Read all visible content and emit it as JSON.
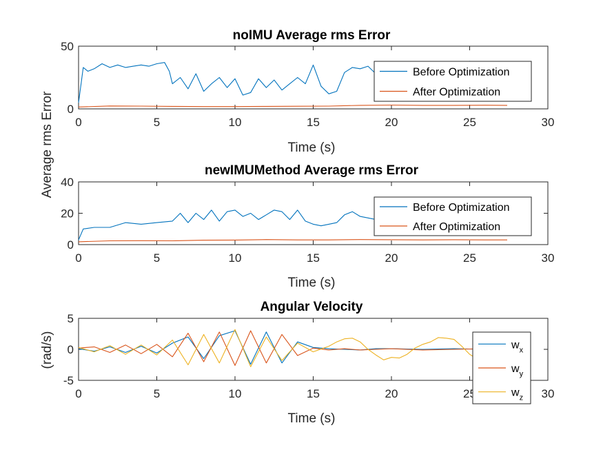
{
  "colors": {
    "series1": "#0072BD",
    "series2": "#D95319",
    "series3": "#EDB120",
    "axis": "#262626",
    "background": "#ffffff"
  },
  "chart_data": [
    {
      "type": "line",
      "title": "noIMU Average rms Error",
      "xlabel": "Time (s)",
      "ylabel": "Average rms Error",
      "xlim": [
        0,
        30
      ],
      "ylim": [
        0,
        50
      ],
      "xticks": [
        0,
        5,
        10,
        15,
        20,
        25,
        30
      ],
      "yticks": [
        0,
        50
      ],
      "legend_position": "top-right",
      "series": [
        {
          "name": "Before Optimization",
          "color": "#0072BD",
          "x": [
            0,
            0.3,
            0.6,
            1.0,
            1.5,
            2.0,
            2.5,
            3.0,
            3.5,
            4.0,
            4.5,
            5.0,
            5.5,
            5.8,
            6.0,
            6.5,
            7.0,
            7.5,
            8.0,
            8.5,
            9.0,
            9.5,
            10.0,
            10.5,
            11.0,
            11.5,
            12.0,
            12.5,
            13.0,
            13.5,
            14.0,
            14.5,
            15.0,
            15.5,
            16.0,
            16.5,
            17.0,
            17.5,
            18.0,
            18.5,
            19.0,
            19.5,
            20.0,
            21.0,
            22.0,
            23.0,
            24.0,
            25.0,
            26.0,
            27.0,
            27.4
          ],
          "y": [
            5,
            33,
            30,
            32,
            36,
            33,
            35,
            33,
            34,
            35,
            34,
            36,
            37,
            30,
            20,
            25,
            16,
            28,
            14,
            20,
            25,
            17,
            24,
            11,
            13,
            24,
            17,
            23,
            15,
            20,
            25,
            20,
            35,
            18,
            12,
            14,
            29,
            33,
            32,
            34,
            28,
            30,
            30,
            31,
            31,
            30,
            30,
            38,
            30,
            31,
            32
          ]
        },
        {
          "name": "After Optimization",
          "color": "#D95319",
          "x": [
            0,
            2,
            4,
            6,
            8,
            10,
            12,
            14,
            16,
            18,
            20,
            22,
            24,
            26,
            27.4
          ],
          "y": [
            1.5,
            2.3,
            2.2,
            2.0,
            1.8,
            1.8,
            2.0,
            2.1,
            2.2,
            2.8,
            3.0,
            2.8,
            2.8,
            2.9,
            2.8
          ]
        }
      ]
    },
    {
      "type": "line",
      "title": "newIMUMethod Average rms Error",
      "xlabel": "Time (s)",
      "ylabel": "Average rms Error",
      "xlim": [
        0,
        30
      ],
      "ylim": [
        0,
        40
      ],
      "xticks": [
        0,
        5,
        10,
        15,
        20,
        25,
        30
      ],
      "yticks": [
        0,
        20,
        40
      ],
      "legend_position": "top-right",
      "series": [
        {
          "name": "Before Optimization",
          "color": "#0072BD",
          "x": [
            0,
            0.3,
            1.0,
            2.0,
            3.0,
            4.0,
            5.0,
            6.0,
            6.5,
            7.0,
            7.5,
            8.0,
            8.5,
            9.0,
            9.5,
            10.0,
            10.5,
            11.0,
            11.5,
            12.0,
            12.5,
            13.0,
            13.5,
            14.0,
            14.5,
            15.0,
            15.5,
            16.0,
            16.5,
            17.0,
            17.5,
            18.0,
            18.5,
            19.0,
            19.5,
            20.0,
            21.0,
            22.0,
            23.0,
            24.0,
            25.0,
            26.0,
            27.0,
            27.4
          ],
          "y": [
            3,
            10,
            11,
            11,
            14,
            13,
            14,
            15,
            20,
            14,
            20,
            16,
            22,
            15,
            21,
            22,
            18,
            20,
            16,
            19,
            22,
            21,
            16,
            22,
            15,
            13,
            12,
            13,
            14,
            19,
            21,
            18,
            17,
            16,
            16,
            15,
            15,
            16,
            15,
            15,
            16,
            15,
            16,
            16
          ]
        },
        {
          "name": "After Optimization",
          "color": "#D95319",
          "x": [
            0,
            2,
            4,
            6,
            8,
            10,
            12,
            14,
            16,
            18,
            20,
            22,
            24,
            26,
            27.4
          ],
          "y": [
            1.8,
            2.4,
            2.5,
            2.4,
            2.8,
            2.9,
            3.2,
            3.0,
            3.0,
            3.2,
            3.1,
            3.0,
            3.1,
            3.0,
            3.0
          ]
        }
      ]
    },
    {
      "type": "line",
      "title": "Angular Velocity",
      "xlabel": "Time (s)",
      "ylabel": "(rad/s)",
      "xlim": [
        0,
        30
      ],
      "ylim": [
        -5,
        5
      ],
      "xticks": [
        0,
        5,
        10,
        15,
        20,
        25,
        30
      ],
      "yticks": [
        -5,
        0,
        5
      ],
      "legend_position": "bottom-right",
      "series": [
        {
          "name": "w",
          "subscript": "x",
          "color": "#0072BD",
          "x": [
            0,
            1,
            2,
            3,
            4,
            5,
            6,
            7,
            8,
            9,
            10,
            11,
            12,
            13,
            14,
            15,
            16,
            17,
            18,
            19,
            20,
            22,
            24,
            26,
            27.4
          ],
          "y": [
            0.1,
            -0.3,
            0.4,
            -0.5,
            0.5,
            -0.6,
            1.0,
            2.0,
            -1.5,
            2.2,
            3.0,
            -2.4,
            2.8,
            -2.2,
            1.2,
            0.3,
            0.1,
            0.0,
            -0.1,
            0.1,
            0.1,
            0.0,
            0.1,
            0.0,
            0.1
          ]
        },
        {
          "name": "w",
          "subscript": "y",
          "color": "#D95319",
          "x": [
            0,
            1,
            2,
            3,
            4,
            5,
            6,
            7,
            8,
            9,
            10,
            11,
            12,
            13,
            14,
            15,
            16,
            17,
            18,
            19,
            20,
            22,
            24,
            26,
            27.4
          ],
          "y": [
            0.2,
            0.4,
            -0.5,
            0.7,
            -0.7,
            0.8,
            -1.2,
            2.6,
            -2.0,
            2.8,
            -2.6,
            3.0,
            -2.2,
            2.4,
            -1.0,
            0.2,
            -0.1,
            0.1,
            -0.1,
            0.0,
            0.1,
            -0.1,
            0.0,
            0.1,
            0.0
          ]
        },
        {
          "name": "w",
          "subscript": "z",
          "color": "#EDB120",
          "x": [
            0,
            1,
            2,
            3,
            4,
            5,
            6,
            7,
            8,
            9,
            10,
            11,
            12,
            13,
            14,
            15,
            16,
            16.5,
            17,
            17.5,
            18,
            18.5,
            19,
            19.5,
            20,
            20.5,
            21,
            21.5,
            22,
            22.5,
            23,
            23.5,
            24,
            24.5,
            25,
            25.5,
            26,
            27.4
          ],
          "y": [
            0.3,
            -0.4,
            0.6,
            -0.8,
            0.7,
            -0.9,
            1.5,
            -2.5,
            2.4,
            -2.2,
            3.2,
            -2.8,
            2.0,
            -1.8,
            1.0,
            -0.4,
            0.5,
            1.2,
            1.7,
            1.8,
            1.2,
            0.0,
            -0.9,
            -1.7,
            -1.3,
            -1.4,
            -0.8,
            0.2,
            0.8,
            1.2,
            1.9,
            1.8,
            1.6,
            0.5,
            -0.8,
            -1.6,
            -1.0,
            -0.5
          ]
        }
      ]
    }
  ]
}
